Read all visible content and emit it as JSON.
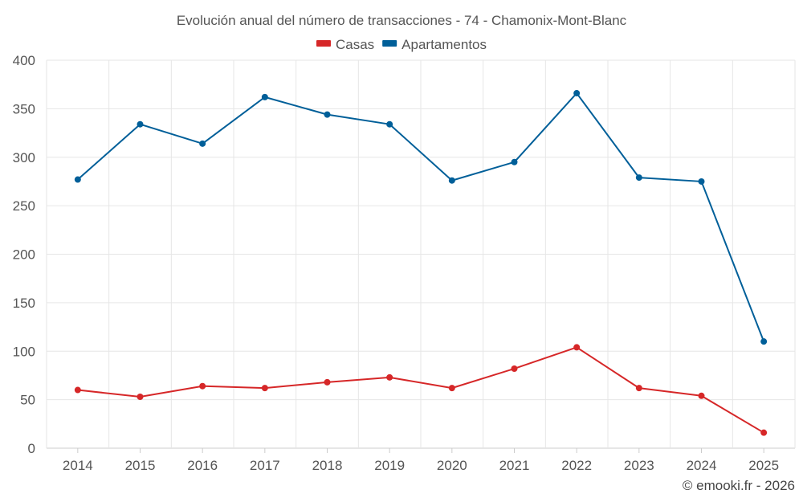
{
  "chart_data": {
    "type": "line",
    "title": "Evolución anual del número de transacciones - 74 - Chamonix-Mont-Blanc",
    "categories": [
      "2014",
      "2015",
      "2016",
      "2017",
      "2018",
      "2019",
      "2020",
      "2021",
      "2022",
      "2023",
      "2024",
      "2025"
    ],
    "series": [
      {
        "name": "Casas",
        "color": "#d62728",
        "values": [
          60,
          53,
          64,
          62,
          68,
          73,
          62,
          82,
          104,
          62,
          54,
          16
        ]
      },
      {
        "name": "Apartamentos",
        "color": "#005f99",
        "values": [
          277,
          334,
          314,
          362,
          344,
          334,
          276,
          295,
          366,
          279,
          275,
          110
        ]
      }
    ],
    "ylim": [
      0,
      400
    ],
    "yticks": [
      0,
      50,
      100,
      150,
      200,
      250,
      300,
      350,
      400
    ],
    "grid": true,
    "legend_position": "top-center",
    "xlabel": "",
    "ylabel": ""
  },
  "credit": "© emooki.fr - 2026"
}
